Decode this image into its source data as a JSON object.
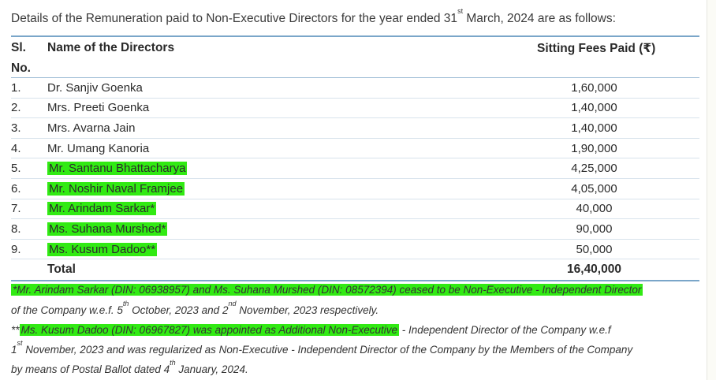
{
  "intro": {
    "prefix": "Details of the Remuneration paid to Non-Executive Directors for the year ended 31",
    "sup": "st",
    "suffix": " March, 2024 are as follows:"
  },
  "headers": {
    "sl_line1": "Sl.",
    "sl_line2": "No.",
    "name": "Name of the Directors",
    "fees": "Sitting Fees Paid (₹)"
  },
  "rows": [
    {
      "sl": "1.",
      "name": "Dr. Sanjiv Goenka",
      "fees": "1,60,000",
      "highlight": false
    },
    {
      "sl": "2.",
      "name": "Mrs. Preeti Goenka",
      "fees": "1,40,000",
      "highlight": false
    },
    {
      "sl": "3.",
      "name": "Mrs. Avarna Jain",
      "fees": "1,40,000",
      "highlight": false
    },
    {
      "sl": "4.",
      "name": "Mr. Umang Kanoria",
      "fees": "1,90,000",
      "highlight": false
    },
    {
      "sl": "5.",
      "name": "Mr. Santanu Bhattacharya",
      "fees": "4,25,000",
      "highlight": true
    },
    {
      "sl": "6.",
      "name": "Mr. Noshir Naval Framjee",
      "fees": "4,05,000",
      "highlight": true
    },
    {
      "sl": "7.",
      "name": "Mr. Arindam Sarkar*",
      "fees": "40,000",
      "highlight": true
    },
    {
      "sl": "8.",
      "name": "Ms. Suhana Murshed*",
      "fees": "90,000",
      "highlight": true
    },
    {
      "sl": "9.",
      "name": "Ms. Kusum Dadoo**",
      "fees": "50,000",
      "highlight": true
    }
  ],
  "total": {
    "label": "Total",
    "fees": "16,40,000"
  },
  "notes": {
    "n1_hl": "*Mr. Arindam Sarkar (DIN: 06938957) and Ms. Suhana Murshed (DIN: 08572394) ceased to be Non-Executive - Independent Director",
    "n1_l2_a": "of the Company w.e.f. 5",
    "n1_l2_sup1": "th",
    "n1_l2_b": " October, 2023 and  2",
    "n1_l2_sup2": "nd",
    "n1_l2_c": " November, 2023 respectively.",
    "n2_stars": "**",
    "n2_hl": "Ms. Kusum Dadoo (DIN: 06967827) was appointed as Additional Non-Executive",
    "n2_rest": " - Independent Director of the Company w.e.f",
    "n2_l2_a": "1",
    "n2_l2_sup": "st",
    "n2_l2_b": " November, 2023 and was regularized as Non-Executive - Independent Director of the Company by the Members of the Company",
    "n2_l3_a": "by means of Postal Ballot dated 4",
    "n2_l3_sup": "th",
    "n2_l3_b": " January, 2024."
  },
  "colors": {
    "highlight": "#31ea13",
    "rule": "#7aa6c9"
  }
}
